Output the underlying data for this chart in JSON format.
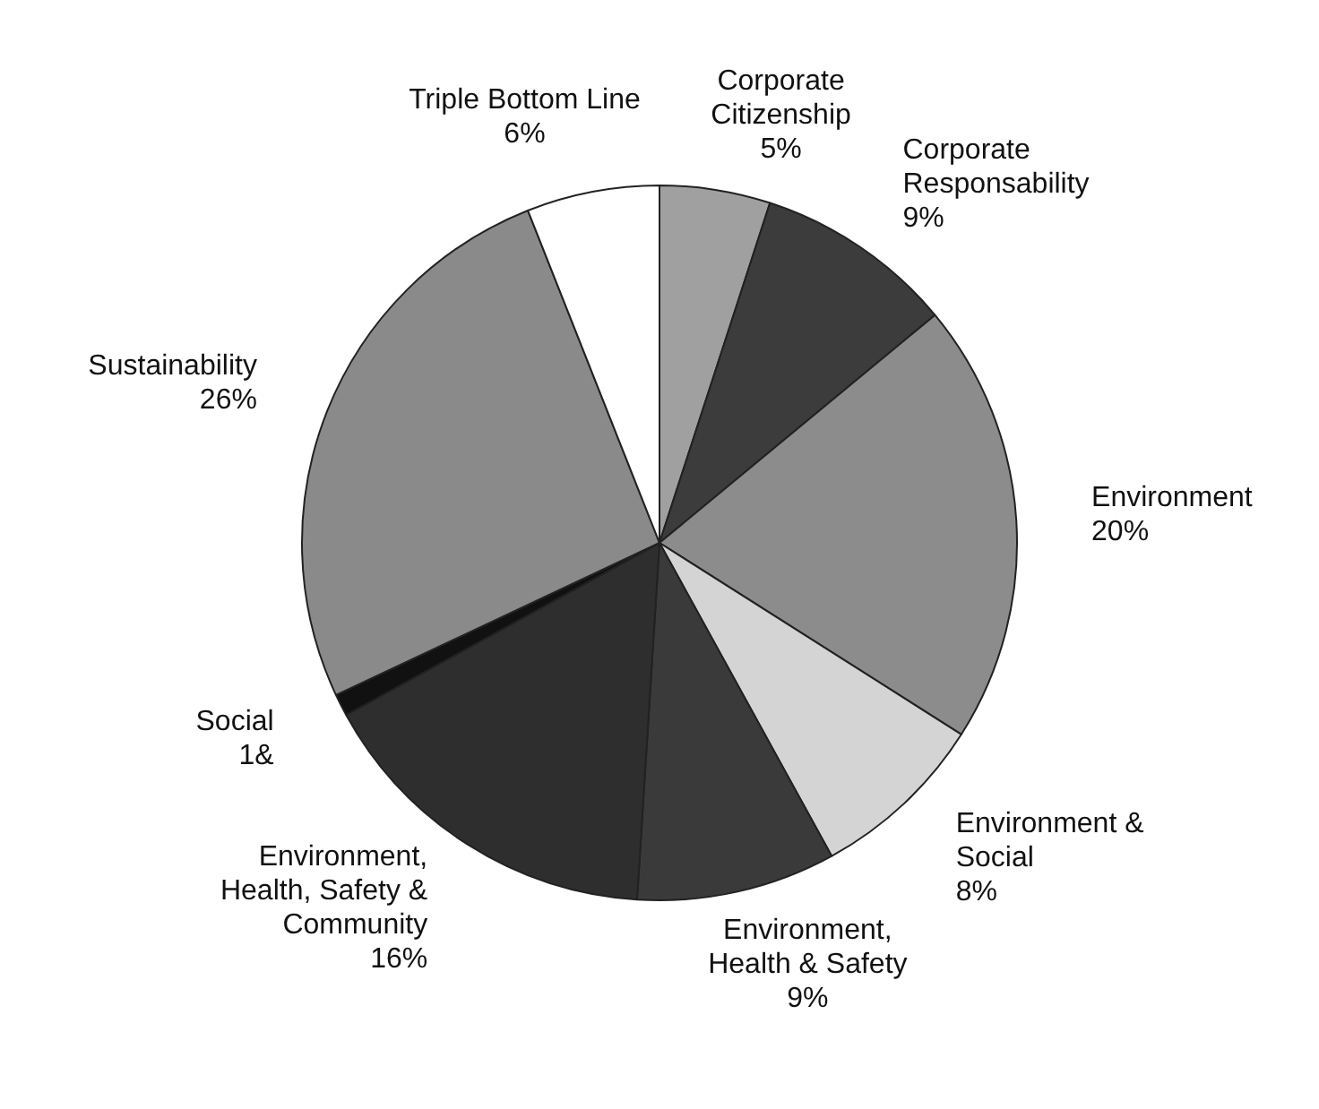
{
  "chart_data": {
    "type": "pie",
    "categories": [
      "Corporate Citizenship",
      "Corporate Responsability",
      "Environment",
      "Environment & Social",
      "Environment, Health & Safety",
      "Environment, Health, Safety & Community",
      "Social",
      "Sustainability",
      "Triple Bottom Line"
    ],
    "values": [
      5,
      9,
      20,
      8,
      9,
      16,
      1,
      26,
      6
    ],
    "value_labels": [
      "5%",
      "9%",
      "20%",
      "8%",
      "9%",
      "16%",
      "1&",
      "26%",
      "6%"
    ],
    "colors": [
      "#a0a0a0",
      "#3c3c3c",
      "#8c8c8c",
      "#d4d4d4",
      "#3a3a3a",
      "#2e2e2e",
      "#111111",
      "#8a8a8a",
      "#ffffff"
    ]
  }
}
